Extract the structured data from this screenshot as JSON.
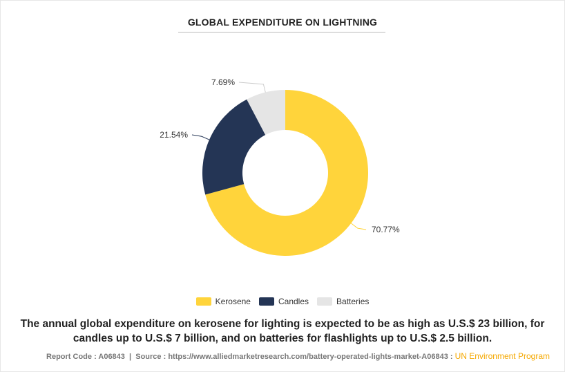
{
  "chart_data": {
    "type": "pie",
    "title": "GLOBAL EXPENDITURE ON LIGHTNING",
    "categories": [
      "Kerosene",
      "Candles",
      "Batteries"
    ],
    "values": [
      70.77,
      21.54,
      7.69
    ],
    "value_labels": [
      "70.77%",
      "21.54%",
      "7.69%"
    ],
    "colors": [
      "#FFD43B",
      "#243555",
      "#E5E5E5"
    ],
    "legend_position": "bottom-center"
  },
  "caption": "The annual global expenditure on kerosene for lighting is expected to be as high as U.S.$ 23 billion, for candles up to U.S.$ 7 billion, and on batteries for flashlights up to U.S.$ 2.5 billion.",
  "footer": {
    "report_code": "Report Code : A06843",
    "separator": "|",
    "source": "Source : https://www.alliedmarketresearch.com/battery-operated-lights-market-A06843 :",
    "organization": "UN Environment Program"
  }
}
